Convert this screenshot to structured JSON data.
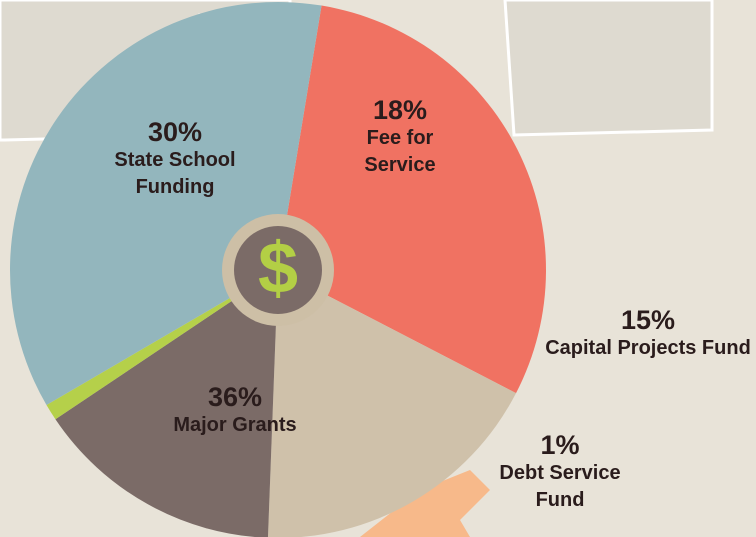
{
  "chart_data": {
    "type": "pie",
    "categories": [
      "State School Funding",
      "Fee for Service",
      "Capital Projects Fund",
      "Debt Service Fund",
      "Major Grants"
    ],
    "values": [
      30,
      18,
      15,
      1,
      36
    ],
    "value_labels": [
      "30%",
      "18%",
      "15%",
      "1%",
      "36%"
    ],
    "colors": [
      "#f07262",
      "#cfc1aa",
      "#7b6b67",
      "#b5d04a",
      "#93b6bd"
    ],
    "center_icon": "$"
  }
}
